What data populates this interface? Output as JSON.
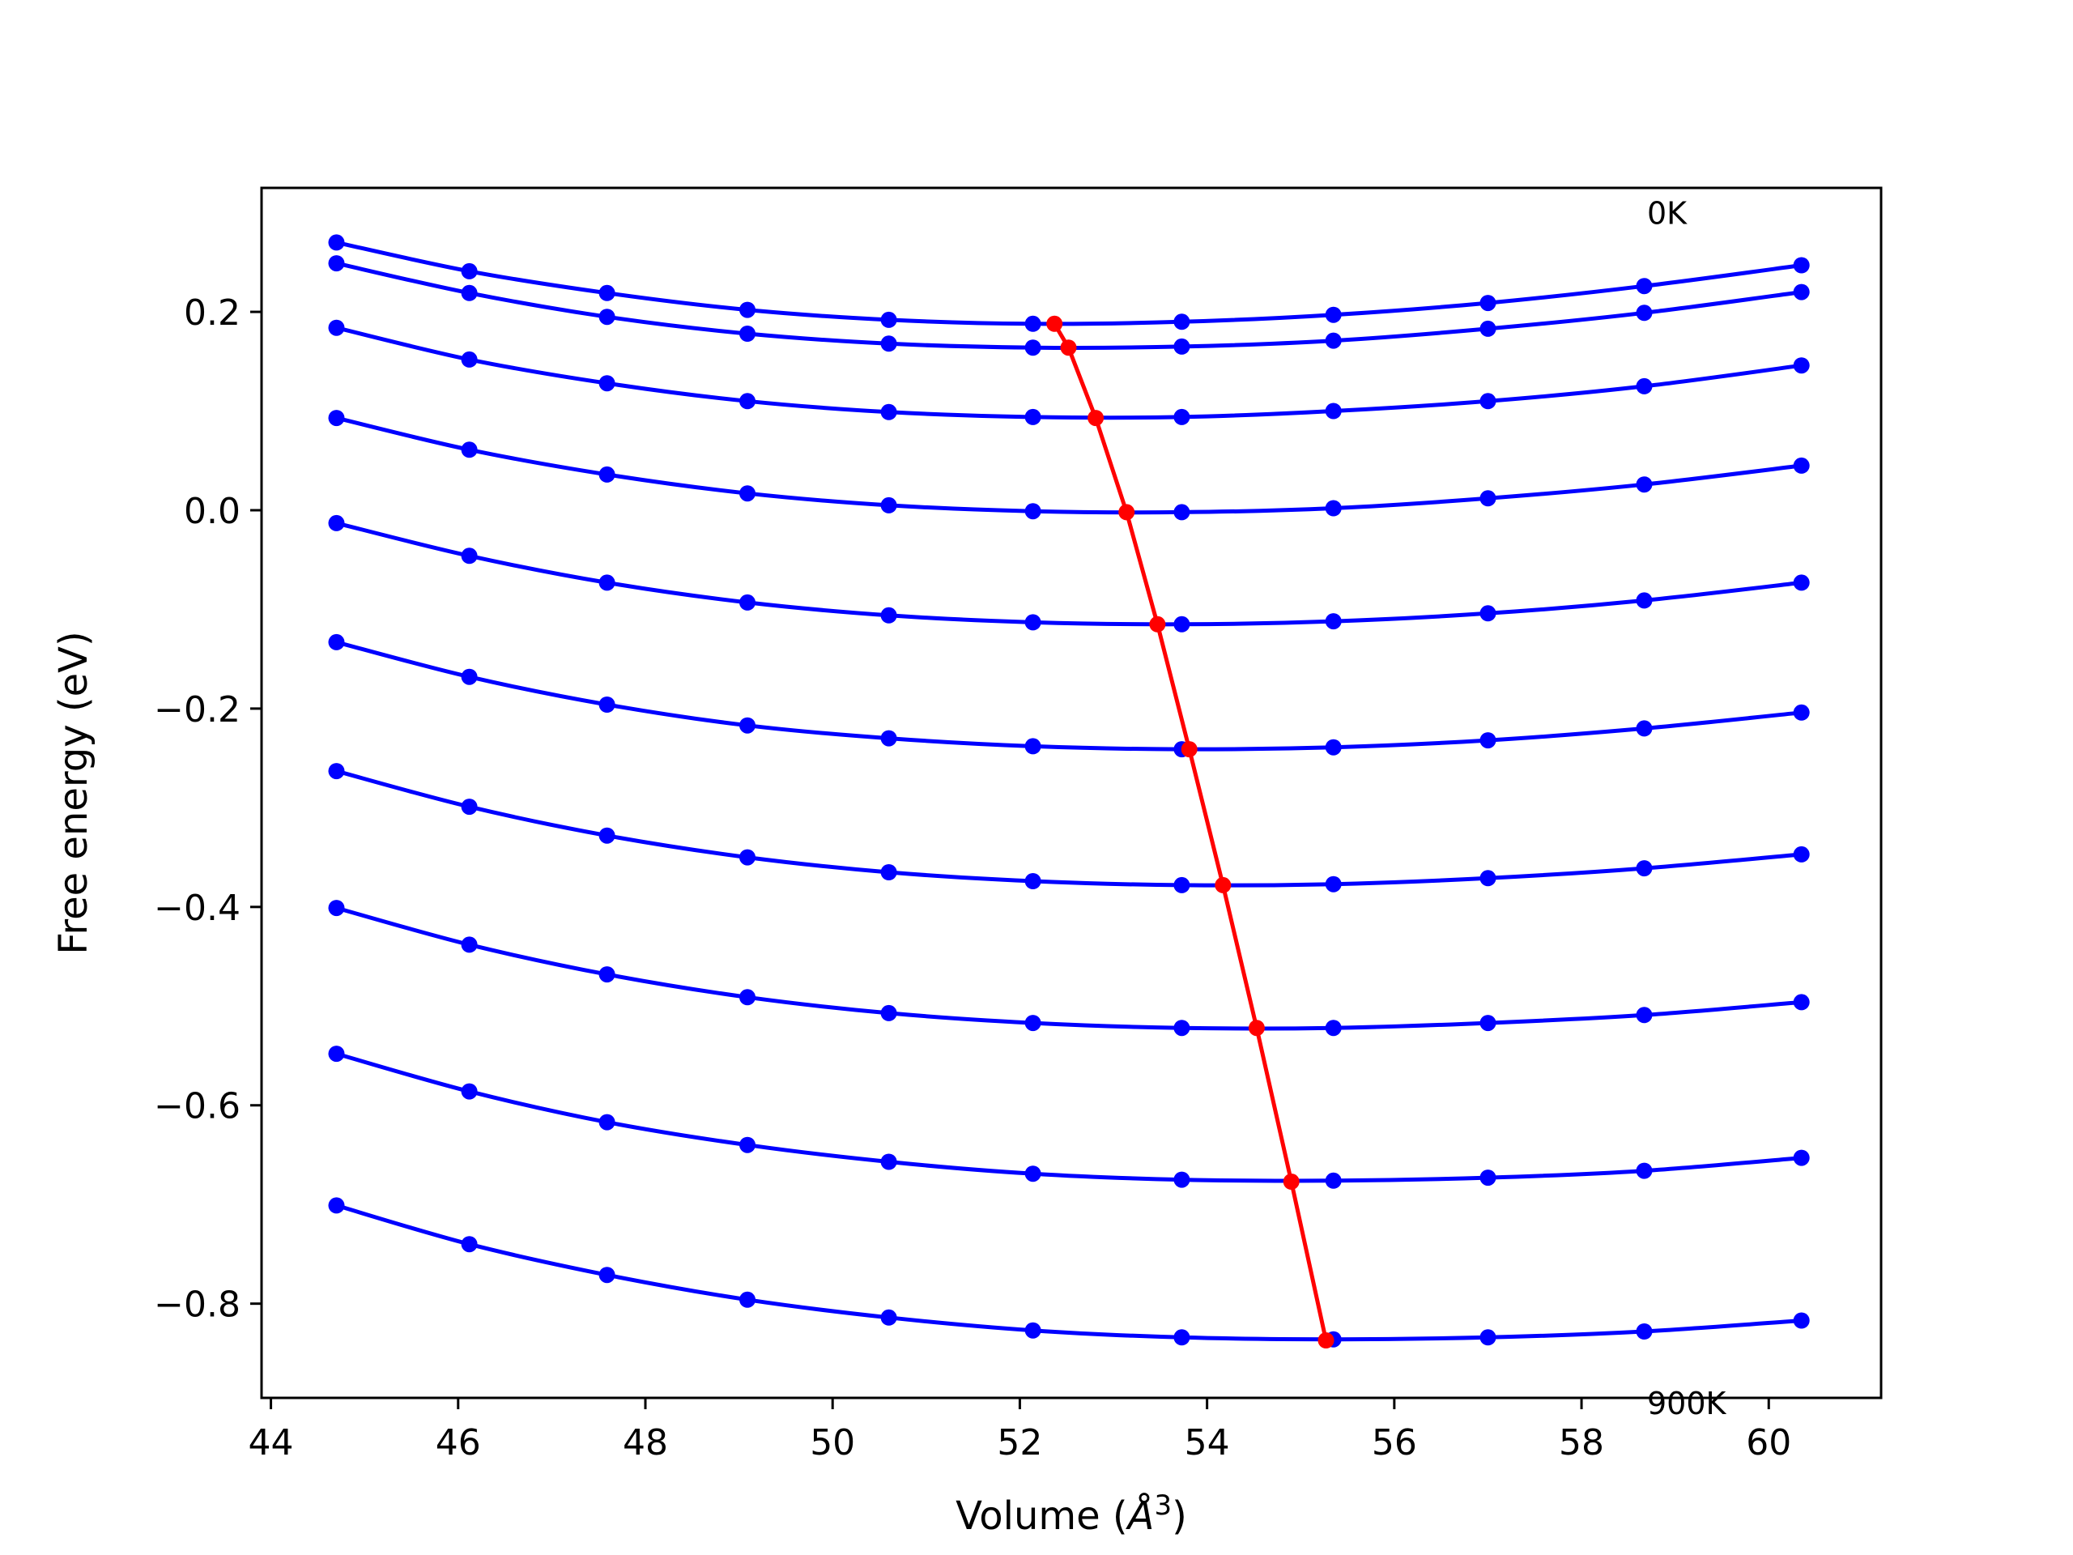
{
  "chart_data": {
    "type": "line",
    "xlabel": "Volume",
    "xlabel_unit_base": "Å",
    "xlabel_unit_exp": "3",
    "ylabel": "Free energy (eV)",
    "xlim": [
      43.9,
      61.2
    ],
    "ylim": [
      -0.895,
      0.325
    ],
    "x_ticks": [
      44,
      46,
      48,
      50,
      52,
      54,
      56,
      58,
      60
    ],
    "x_tick_labels": [
      "44",
      "46",
      "48",
      "50",
      "52",
      "54",
      "56",
      "58",
      "60"
    ],
    "y_ticks": [
      0.2,
      0.0,
      -0.2,
      -0.4,
      -0.6,
      -0.8
    ],
    "y_tick_labels": [
      "0.2",
      "0.0",
      "−0.2",
      "−0.4",
      "−0.6",
      "−0.8"
    ],
    "grid": false,
    "legend": "none",
    "annotations": [
      {
        "text": "0K",
        "x": 58.7,
        "y": 0.3
      },
      {
        "text": "900K",
        "x": 58.7,
        "y": -0.9
      }
    ],
    "colors": {
      "curves": "#0000ff",
      "minimum_line": "#ff0000"
    },
    "x": [
      44.7,
      46.12,
      47.59,
      49.09,
      50.6,
      52.14,
      53.73,
      55.35,
      57.0,
      58.67,
      60.35
    ],
    "series": [
      {
        "values": [
          0.27,
          0.241,
          0.219,
          0.202,
          0.192,
          0.188,
          0.19,
          0.197,
          0.209,
          0.226,
          0.247
        ],
        "min_volume": 52.37,
        "min_energy": 0.188
      },
      {
        "values": [
          0.249,
          0.219,
          0.195,
          0.178,
          0.168,
          0.164,
          0.165,
          0.171,
          0.183,
          0.199,
          0.22
        ],
        "min_volume": 52.52,
        "min_energy": 0.164
      },
      {
        "values": [
          0.184,
          0.152,
          0.128,
          0.11,
          0.099,
          0.094,
          0.094,
          0.1,
          0.11,
          0.125,
          0.146
        ],
        "min_volume": 52.81,
        "min_energy": 0.093
      },
      {
        "values": [
          0.093,
          0.061,
          0.036,
          0.017,
          0.005,
          -0.001,
          -0.002,
          0.002,
          0.012,
          0.026,
          0.045
        ],
        "min_volume": 53.14,
        "min_energy": -0.002
      },
      {
        "values": [
          -0.013,
          -0.046,
          -0.073,
          -0.093,
          -0.106,
          -0.113,
          -0.115,
          -0.112,
          -0.104,
          -0.091,
          -0.073
        ],
        "min_volume": 53.47,
        "min_energy": -0.115
      },
      {
        "values": [
          -0.133,
          -0.168,
          -0.196,
          -0.217,
          -0.23,
          -0.238,
          -0.241,
          -0.239,
          -0.232,
          -0.22,
          -0.204
        ],
        "min_volume": 53.81,
        "min_energy": -0.241
      },
      {
        "values": [
          -0.263,
          -0.299,
          -0.328,
          -0.35,
          -0.365,
          -0.374,
          -0.378,
          -0.377,
          -0.371,
          -0.361,
          -0.347
        ],
        "min_volume": 54.17,
        "min_energy": -0.378
      },
      {
        "values": [
          -0.401,
          -0.438,
          -0.468,
          -0.491,
          -0.507,
          -0.517,
          -0.522,
          -0.522,
          -0.517,
          -0.509,
          -0.496
        ],
        "min_volume": 54.53,
        "min_energy": -0.522
      },
      {
        "values": [
          -0.548,
          -0.586,
          -0.617,
          -0.64,
          -0.657,
          -0.669,
          -0.675,
          -0.676,
          -0.673,
          -0.666,
          -0.653
        ],
        "min_volume": 54.9,
        "min_energy": -0.677
      },
      {
        "values": [
          -0.701,
          -0.74,
          -0.771,
          -0.796,
          -0.814,
          -0.827,
          -0.834,
          -0.836,
          -0.834,
          -0.828,
          -0.817
        ],
        "min_volume": 55.27,
        "min_energy": -0.837
      }
    ]
  }
}
